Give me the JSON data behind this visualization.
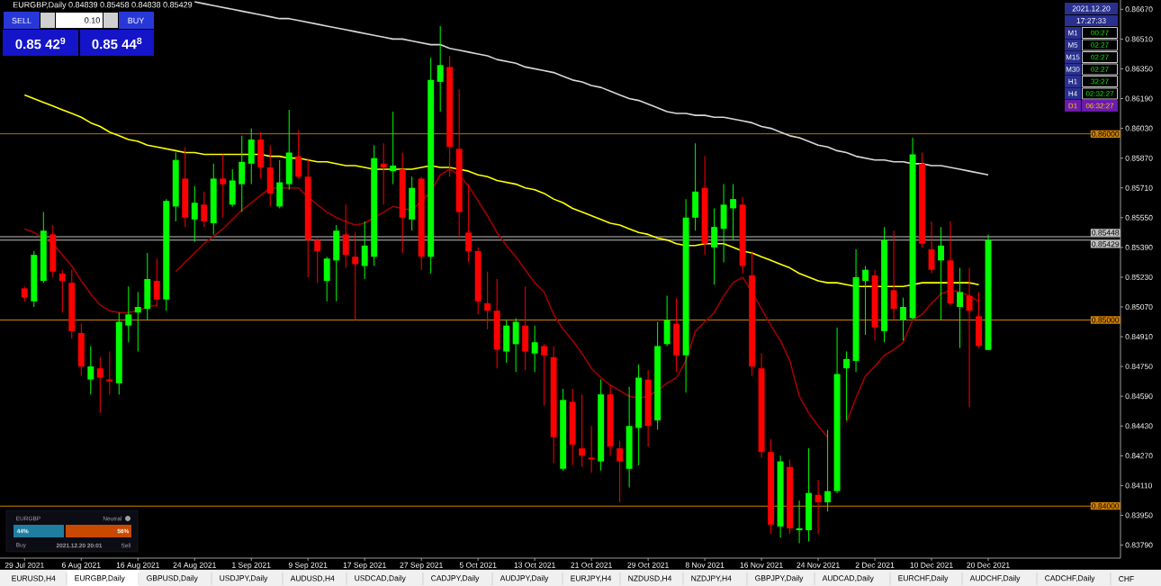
{
  "chart_data": {
    "type": "candlestick",
    "title": "EURGBP,Daily 0.84839 0.85458 0.84838 0.85429",
    "categories": [
      "29 Jul 2021",
      null,
      null,
      null,
      null,
      null,
      "6 Aug 2021",
      null,
      null,
      null,
      null,
      null,
      "16 Aug 2021",
      null,
      null,
      null,
      null,
      null,
      "24 Aug 2021",
      null,
      null,
      null,
      null,
      null,
      "1 Sep 2021",
      null,
      null,
      null,
      null,
      null,
      "9 Sep 2021",
      null,
      null,
      null,
      null,
      null,
      "17 Sep 2021",
      null,
      null,
      null,
      null,
      null,
      "27 Sep 2021",
      null,
      null,
      null,
      null,
      null,
      "5 Oct 2021",
      null,
      null,
      null,
      null,
      null,
      "13 Oct 2021",
      null,
      null,
      null,
      null,
      null,
      "21 Oct 2021",
      null,
      null,
      null,
      null,
      null,
      "29 Oct 2021",
      null,
      null,
      null,
      null,
      null,
      "8 Nov 2021",
      null,
      null,
      null,
      null,
      null,
      "16 Nov 2021",
      null,
      null,
      null,
      null,
      null,
      "24 Nov 2021",
      null,
      null,
      null,
      null,
      null,
      "2 Dec 2021",
      null,
      null,
      null,
      null,
      null,
      "10 Dec 2021",
      null,
      null,
      null,
      null,
      null,
      "20 Dec 2021"
    ],
    "ohlc": [
      [
        0.8517,
        0.8518,
        0.851,
        0.8512
      ],
      [
        0.851,
        0.8537,
        0.8507,
        0.8535
      ],
      [
        0.8521,
        0.8558,
        0.852,
        0.8548
      ],
      [
        0.8546,
        0.8551,
        0.8523,
        0.8526
      ],
      [
        0.8525,
        0.8527,
        0.8504,
        0.8521
      ],
      [
        0.852,
        0.8527,
        0.849,
        0.8494
      ],
      [
        0.8493,
        0.8498,
        0.847,
        0.8475
      ],
      [
        0.8468,
        0.8486,
        0.846,
        0.8475
      ],
      [
        0.8474,
        0.848,
        0.845,
        0.8469
      ],
      [
        0.8468,
        0.8483,
        0.846,
        0.8467
      ],
      [
        0.8466,
        0.8504,
        0.846,
        0.8499
      ],
      [
        0.8497,
        0.8518,
        0.8488,
        0.8503
      ],
      [
        0.8504,
        0.8515,
        0.8483,
        0.8507
      ],
      [
        0.8506,
        0.8536,
        0.85,
        0.8522
      ],
      [
        0.8521,
        0.8533,
        0.8507,
        0.8511
      ],
      [
        0.8511,
        0.8565,
        0.8505,
        0.8564
      ],
      [
        0.8561,
        0.859,
        0.8553,
        0.8586
      ],
      [
        0.8576,
        0.8593,
        0.855,
        0.8555
      ],
      [
        0.8554,
        0.8572,
        0.8542,
        0.8563
      ],
      [
        0.8562,
        0.8569,
        0.855,
        0.8553
      ],
      [
        0.8552,
        0.8584,
        0.8546,
        0.8576
      ],
      [
        0.8576,
        0.8589,
        0.8555,
        0.8573
      ],
      [
        0.8562,
        0.8581,
        0.8561,
        0.8575
      ],
      [
        0.8573,
        0.8599,
        0.8558,
        0.8585
      ],
      [
        0.8584,
        0.8603,
        0.8573,
        0.8597
      ],
      [
        0.8597,
        0.8601,
        0.8576,
        0.8582
      ],
      [
        0.8582,
        0.8594,
        0.8561,
        0.8568
      ],
      [
        0.8561,
        0.8586,
        0.856,
        0.8574
      ],
      [
        0.8573,
        0.8613,
        0.857,
        0.859
      ],
      [
        0.8588,
        0.8602,
        0.8576,
        0.8577
      ],
      [
        0.8577,
        0.8587,
        0.8523,
        0.8543
      ],
      [
        0.8543,
        0.8544,
        0.852,
        0.8537
      ],
      [
        0.8521,
        0.8534,
        0.851,
        0.8533
      ],
      [
        0.8532,
        0.8551,
        0.851,
        0.8548
      ],
      [
        0.8546,
        0.8562,
        0.8528,
        0.8535
      ],
      [
        0.8534,
        0.8547,
        0.85,
        0.853
      ],
      [
        0.8529,
        0.8553,
        0.8522,
        0.854
      ],
      [
        0.8534,
        0.8594,
        0.8529,
        0.8587
      ],
      [
        0.8584,
        0.8595,
        0.8562,
        0.8582
      ],
      [
        0.858,
        0.8612,
        0.8573,
        0.8583
      ],
      [
        0.8581,
        0.859,
        0.8536,
        0.8555
      ],
      [
        0.8554,
        0.8577,
        0.8548,
        0.8571
      ],
      [
        0.8576,
        0.8577,
        0.8527,
        0.8534
      ],
      [
        0.8534,
        0.8641,
        0.8525,
        0.8629
      ],
      [
        0.8628,
        0.8658,
        0.8612,
        0.8637
      ],
      [
        0.8636,
        0.8642,
        0.8577,
        0.8593
      ],
      [
        0.8592,
        0.8624,
        0.8544,
        0.8558
      ],
      [
        0.8547,
        0.8573,
        0.8531,
        0.8537
      ],
      [
        0.8537,
        0.8539,
        0.8503,
        0.851
      ],
      [
        0.8509,
        0.8526,
        0.8495,
        0.8505
      ],
      [
        0.8505,
        0.8522,
        0.8474,
        0.8484
      ],
      [
        0.8483,
        0.85,
        0.8477,
        0.8497
      ],
      [
        0.8487,
        0.8501,
        0.8472,
        0.8499
      ],
      [
        0.8497,
        0.8518,
        0.8473,
        0.8483
      ],
      [
        0.8482,
        0.8497,
        0.8472,
        0.8488
      ],
      [
        0.8486,
        0.8487,
        0.8454,
        0.8481
      ],
      [
        0.848,
        0.8486,
        0.8423,
        0.8437
      ],
      [
        0.842,
        0.8463,
        0.8419,
        0.8457
      ],
      [
        0.8456,
        0.8463,
        0.8422,
        0.8433
      ],
      [
        0.8431,
        0.846,
        0.8421,
        0.8427
      ],
      [
        0.8426,
        0.8443,
        0.8418,
        0.8425
      ],
      [
        0.8424,
        0.8468,
        0.8419,
        0.846
      ],
      [
        0.846,
        0.8465,
        0.8427,
        0.8432
      ],
      [
        0.8431,
        0.8435,
        0.8402,
        0.8424
      ],
      [
        0.842,
        0.8464,
        0.841,
        0.8443
      ],
      [
        0.8442,
        0.8476,
        0.8422,
        0.8469
      ],
      [
        0.8468,
        0.8473,
        0.8432,
        0.8443
      ],
      [
        0.8446,
        0.8499,
        0.8441,
        0.8486
      ],
      [
        0.8487,
        0.8513,
        0.8486,
        0.85
      ],
      [
        0.8498,
        0.8512,
        0.8472,
        0.8481
      ],
      [
        0.8481,
        0.8565,
        0.8461,
        0.8555
      ],
      [
        0.8555,
        0.8595,
        0.8548,
        0.8569
      ],
      [
        0.8571,
        0.8588,
        0.8535,
        0.8541
      ],
      [
        0.8539,
        0.856,
        0.8519,
        0.855
      ],
      [
        0.8549,
        0.8573,
        0.8531,
        0.8562
      ],
      [
        0.856,
        0.8573,
        0.8543,
        0.8565
      ],
      [
        0.8562,
        0.8566,
        0.8525,
        0.8529
      ],
      [
        0.8524,
        0.8537,
        0.847,
        0.8475
      ],
      [
        0.8474,
        0.8482,
        0.8426,
        0.8429
      ],
      [
        0.8429,
        0.8436,
        0.8385,
        0.839
      ],
      [
        0.8389,
        0.8427,
        0.8383,
        0.8424
      ],
      [
        0.8421,
        0.8425,
        0.8385,
        0.8388
      ],
      [
        0.8387,
        0.8403,
        0.838,
        0.8388
      ],
      [
        0.8387,
        0.8431,
        0.8381,
        0.8407
      ],
      [
        0.8406,
        0.8414,
        0.8385,
        0.8402
      ],
      [
        0.8402,
        0.8441,
        0.8397,
        0.8408
      ],
      [
        0.8408,
        0.8496,
        0.8407,
        0.8471
      ],
      [
        0.8474,
        0.8483,
        0.8446,
        0.8479
      ],
      [
        0.8478,
        0.8538,
        0.8472,
        0.8523
      ],
      [
        0.8521,
        0.8529,
        0.8492,
        0.8527
      ],
      [
        0.8524,
        0.8527,
        0.8489,
        0.8496
      ],
      [
        0.8494,
        0.855,
        0.8488,
        0.8543
      ],
      [
        0.8516,
        0.8548,
        0.85,
        0.8506
      ],
      [
        0.85,
        0.8512,
        0.8489,
        0.8507
      ],
      [
        0.8501,
        0.8598,
        0.85,
        0.8589
      ],
      [
        0.8584,
        0.859,
        0.8539,
        0.8541
      ],
      [
        0.8538,
        0.8553,
        0.8525,
        0.8527
      ],
      [
        0.8532,
        0.855,
        0.85,
        0.854
      ],
      [
        0.8532,
        0.8553,
        0.8508,
        0.8509
      ],
      [
        0.8507,
        0.8528,
        0.8485,
        0.8515
      ],
      [
        0.8513,
        0.8528,
        0.8453,
        0.8505
      ],
      [
        0.8502,
        0.8515,
        0.8485,
        0.8486
      ],
      [
        0.84839,
        0.85458,
        0.84838,
        0.85429
      ]
    ],
    "colors": [
      "#ff0000",
      "#00ff00",
      "#00ff00",
      "#ff0000",
      "#ff0000",
      "#ff0000",
      "#ff0000",
      "#00ff00",
      "#ff0000",
      "#ff0000",
      "#00ff00",
      "#00ff00",
      "#00ff00",
      "#00ff00",
      "#ff0000",
      "#00ff00",
      "#00ff00",
      "#ff0000",
      "#00ff00",
      "#ff0000",
      "#00ff00",
      "#ff0000",
      "#00ff00",
      "#00ff00",
      "#00ff00",
      "#ff0000",
      "#ff0000",
      "#00ff00",
      "#00ff00",
      "#ff0000",
      "#ff0000",
      "#ff0000",
      "#00ff00",
      "#00ff00",
      "#ff0000",
      "#ff0000",
      "#00ff00",
      "#00ff00",
      "#ff0000",
      "#00ff00",
      "#ff0000",
      "#00ff00",
      "#ff0000",
      "#00ff00",
      "#00ff00",
      "#ff0000",
      "#ff0000",
      "#ff0000",
      "#ff0000",
      "#ff0000",
      "#ff0000",
      "#00ff00",
      "#00ff00",
      "#ff0000",
      "#00ff00",
      "#ff0000",
      "#ff0000",
      "#00ff00",
      "#ff0000",
      "#ff0000",
      "#ff0000",
      "#00ff00",
      "#ff0000",
      "#ff0000",
      "#00ff00",
      "#00ff00",
      "#ff0000",
      "#00ff00",
      "#00ff00",
      "#ff0000",
      "#00ff00",
      "#00ff00",
      "#ff0000",
      "#00ff00",
      "#00ff00",
      "#00ff00",
      "#ff0000",
      "#ff0000",
      "#ff0000",
      "#ff0000",
      "#00ff00",
      "#ff0000",
      "#00ff00",
      "#00ff00",
      "#ff0000",
      "#00ff00",
      "#00ff00",
      "#00ff00",
      "#00ff00",
      "#00ff00",
      "#ff0000",
      "#00ff00",
      "#ff0000",
      "#00ff00",
      "#00ff00",
      "#ff0000",
      "#ff0000",
      "#00ff00",
      "#ff0000",
      "#00ff00",
      "#ff0000",
      "#ff0000",
      "#00ff00"
    ],
    "series": [
      {
        "type": "line",
        "color": "#d8d8d8",
        "values": [
          null,
          null,
          null,
          null,
          null,
          null,
          null,
          null,
          null,
          null,
          null,
          null,
          null,
          null,
          null,
          null,
          null,
          null,
          0.8671,
          0.867,
          0.8669,
          0.8668,
          0.8667,
          0.8666,
          0.8665,
          0.8664,
          0.8663,
          0.8662,
          0.8662,
          0.8661,
          0.866,
          0.8659,
          0.8658,
          0.8657,
          0.8656,
          0.8655,
          0.8654,
          0.8653,
          0.8652,
          0.8651,
          0.8651,
          0.865,
          0.8649,
          0.8648,
          0.8648,
          0.8646,
          0.8645,
          0.8644,
          0.8643,
          0.8642,
          0.864,
          0.8639,
          0.8638,
          0.8636,
          0.8635,
          0.8634,
          0.8633,
          0.8631,
          0.8629,
          0.8628,
          0.8626,
          0.8625,
          0.8623,
          0.8621,
          0.8619,
          0.8618,
          0.8616,
          0.8614,
          0.8612,
          0.8611,
          0.8611,
          0.861,
          0.861,
          0.8609,
          0.8609,
          0.8608,
          0.8607,
          0.8606,
          0.8604,
          0.8603,
          0.8601,
          0.8599,
          0.8598,
          0.8596,
          0.8594,
          0.8593,
          0.8591,
          0.859,
          0.8588,
          0.8587,
          0.8586,
          0.8586,
          0.8585,
          0.8585,
          0.8584,
          0.8584,
          0.8583,
          0.8583,
          0.8582,
          0.8581,
          0.858,
          0.8579,
          0.8578
        ]
      },
      {
        "type": "line",
        "color": "#ffff00",
        "values": [
          0.8621,
          0.8619,
          0.8617,
          0.8615,
          0.8613,
          0.8611,
          0.8609,
          0.8606,
          0.8604,
          0.8601,
          0.8599,
          0.8597,
          0.8596,
          0.8594,
          0.8593,
          0.8592,
          0.8591,
          0.859,
          0.859,
          0.8589,
          0.8589,
          0.8589,
          0.8589,
          0.8589,
          0.8589,
          0.8589,
          0.8588,
          0.8588,
          0.8587,
          0.8587,
          0.8586,
          0.8585,
          0.8585,
          0.8584,
          0.8583,
          0.8583,
          0.8582,
          0.8581,
          0.8581,
          0.8581,
          0.8581,
          0.8581,
          0.8582,
          0.8583,
          0.8582,
          0.8582,
          0.8581,
          0.858,
          0.8578,
          0.8577,
          0.8575,
          0.8574,
          0.8573,
          0.8571,
          0.857,
          0.8568,
          0.8565,
          0.8563,
          0.856,
          0.8558,
          0.8556,
          0.8554,
          0.8552,
          0.8551,
          0.8549,
          0.8547,
          0.8546,
          0.8544,
          0.8543,
          0.8541,
          0.854,
          0.854,
          0.8541,
          0.8541,
          0.8541,
          0.8539,
          0.8537,
          0.8536,
          0.8534,
          0.8532,
          0.853,
          0.8528,
          0.8525,
          0.8523,
          0.8521,
          0.852,
          0.852,
          0.8519,
          0.8518,
          0.8518,
          0.8518,
          0.8518,
          0.8518,
          0.8518,
          0.8519,
          0.852,
          0.852,
          0.852,
          0.852,
          0.852,
          0.852,
          0.8519,
          null
        ]
      },
      {
        "type": "line",
        "color": "#a00000",
        "values": [
          0.8549,
          0.8547,
          0.8544,
          0.8541,
          0.8535,
          0.8529,
          0.8521,
          0.8514,
          0.8508,
          0.8505,
          0.8504,
          0.8504,
          0.8505,
          0.8507,
          0.8508,
          null,
          0.8526,
          0.8531,
          0.8536,
          0.8541,
          0.8545,
          0.8549,
          0.8554,
          0.8559,
          0.8563,
          0.8567,
          0.8571,
          0.8571,
          0.8571,
          0.8571,
          0.8566,
          0.8562,
          0.8558,
          0.8555,
          0.8553,
          0.8551,
          0.8552,
          0.8555,
          0.8558,
          0.8561,
          0.856,
          0.8559,
          0.8564,
          0.8569,
          0.8578,
          0.8581,
          0.8578,
          0.8572,
          0.8564,
          0.8556,
          0.8547,
          0.854,
          0.8534,
          0.8527,
          0.852,
          0.8515,
          0.8503,
          0.8495,
          0.8489,
          0.8482,
          0.8474,
          0.8469,
          0.8465,
          0.8462,
          0.8459,
          0.8458,
          0.8459,
          0.8462,
          0.8466,
          0.8469,
          0.8478,
          0.8494,
          0.8499,
          0.8504,
          0.8513,
          0.852,
          0.8523,
          0.8515,
          0.8506,
          0.8497,
          0.8489,
          0.8478,
          0.8459,
          0.845,
          0.8443,
          0.8437,
          null,
          0.8445,
          0.8458,
          0.847,
          0.8475,
          0.8481,
          0.8484,
          0.8488,
          0.85,
          0.8503,
          0.8509,
          0.8514,
          0.8516,
          0.8515,
          0.8513,
          0.851,
          null
        ]
      }
    ],
    "ylim": [
      0.8372,
      0.8672
    ],
    "yticks": [
      {
        "value": 0.8667,
        "label": "0.86670"
      },
      {
        "value": 0.8651,
        "label": "0.86510"
      },
      {
        "value": 0.8635,
        "label": "0.86350"
      },
      {
        "value": 0.8619,
        "label": "0.86190"
      },
      {
        "value": 0.8603,
        "label": "0.86030"
      },
      {
        "value": 0.8587,
        "label": "0.85870"
      },
      {
        "value": 0.8571,
        "label": "0.85710"
      },
      {
        "value": 0.8555,
        "label": "0.85550"
      },
      {
        "value": 0.8539,
        "label": "0.85390"
      },
      {
        "value": 0.8523,
        "label": "0.85230"
      },
      {
        "value": 0.8507,
        "label": "0.85070"
      },
      {
        "value": 0.8491,
        "label": "0.84910"
      },
      {
        "value": 0.8475,
        "label": "0.84750"
      },
      {
        "value": 0.8459,
        "label": "0.84590"
      },
      {
        "value": 0.8443,
        "label": "0.84430"
      },
      {
        "value": 0.8427,
        "label": "0.84270"
      },
      {
        "value": 0.8411,
        "label": "0.84110"
      },
      {
        "value": 0.8395,
        "label": "0.83950"
      },
      {
        "value": 0.8379,
        "label": "0.83790"
      }
    ],
    "ref_lines": [
      {
        "axis": "y",
        "value": 0.86,
        "label": "0.86000",
        "color": "#d08000"
      },
      {
        "axis": "y",
        "value": 0.85448,
        "label": "0.85448",
        "color": "#c0c0c0"
      },
      {
        "axis": "y",
        "value": 0.85429,
        "label": "0.85429",
        "color": "#c0c0c0"
      },
      {
        "axis": "y",
        "value": 0.85,
        "label": "0.85000",
        "color": "#d08000"
      },
      {
        "axis": "y",
        "value": 0.84,
        "label": "0.84000",
        "color": "#d08000"
      }
    ],
    "annotations": [
      "SELL",
      "0.10",
      "BUY",
      "0.85 42$^{9}$",
      "0.85 44$^{8}$",
      "2021.12.20",
      "17:27:33",
      "M1",
      "00:27",
      "M5",
      "02:27",
      "M15",
      "02:27",
      "M30",
      "02:27",
      "H1",
      "32:27",
      "H4",
      "02:32:27",
      "D1",
      "06:32:27",
      "EURGBP",
      "Neutral",
      "44%",
      "56%",
      "Buy",
      "2021.12.20 20:01",
      "Sell",
      "EURUSD,H4",
      "EURGBP,Daily",
      "GBPUSD,Daily",
      "USDJPY,Daily",
      "AUDUSD,H4",
      "USDCAD,Daily",
      "CADJPY,Daily",
      "AUDJPY,Daily",
      "EURJPY,H4",
      "NZDUSD,H4",
      "NZDJPY,H4",
      "GBPJPY,Daily",
      "AUDCAD,Daily",
      "EURCHF,Daily",
      "AUDCHF,Daily",
      "CADCHF,Daily",
      "CHF"
    ]
  }
}
